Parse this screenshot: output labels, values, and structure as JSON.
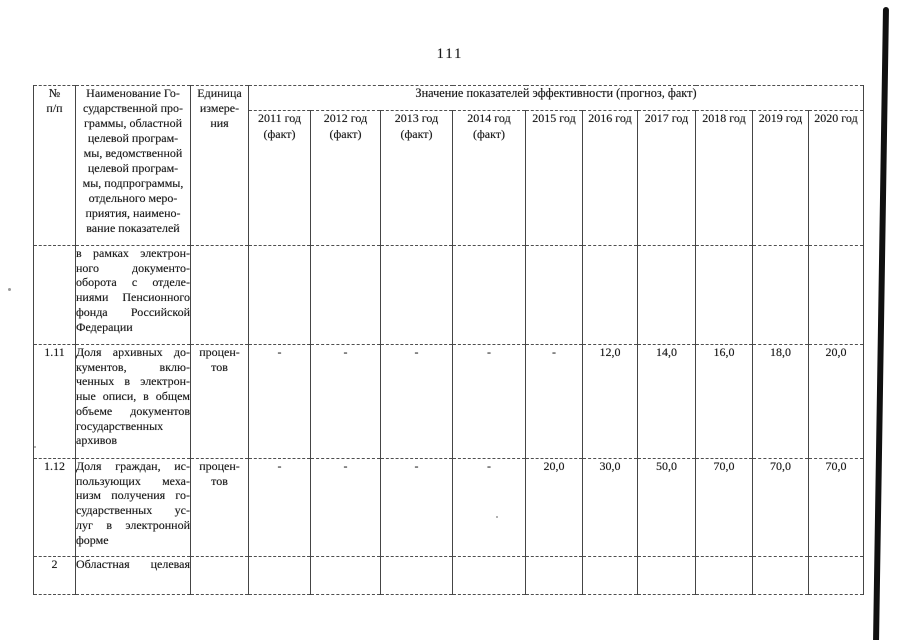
{
  "page": {
    "number": "111"
  },
  "table": {
    "header": {
      "num_lines": [
        "№",
        "п/п"
      ],
      "name_lines": [
        "Наименование Го-",
        "сударственной про-",
        "граммы, областной",
        "целевой програм-",
        "мы, ведомственной",
        "целевой програм-",
        "мы, подпрограммы,",
        "отдельного меро-",
        "приятия, наимено-",
        "вание показателей"
      ],
      "unit_lines": [
        "Единица",
        "измере-",
        "ния"
      ],
      "group_title": "Значение показателей эффективности (прогноз, факт)",
      "years": [
        [
          "2011 год",
          "(факт)"
        ],
        [
          "2012 год",
          "(факт)"
        ],
        [
          "2013 год",
          "(факт)"
        ],
        [
          "2014 год",
          "(факт)"
        ],
        [
          "2015 год"
        ],
        [
          "2016 год"
        ],
        [
          "2017 год"
        ],
        [
          "2018 год"
        ],
        [
          "2019 год"
        ],
        [
          "2020 год"
        ]
      ]
    },
    "rows": [
      {
        "num": "",
        "name_lines": [
          "в рамках электрон-",
          "ного документо-",
          "оборота с отделе-",
          "ниями Пенсионного",
          "фонда Российской",
          "Федерации"
        ],
        "unit_lines": [],
        "values": [
          "",
          "",
          "",
          "",
          "",
          "",
          "",
          "",
          "",
          ""
        ]
      },
      {
        "num": "1.11",
        "name_lines": [
          "Доля архивных до-",
          "кументов, вклю-",
          "ченных в электрон-",
          "ные описи, в общем",
          "объеме документов",
          "государственных",
          "архивов"
        ],
        "unit_lines": [
          "процен-",
          "тов"
        ],
        "values": [
          "-",
          "-",
          "-",
          "-",
          "-",
          "12,0",
          "14,0",
          "16,0",
          "18,0",
          "20,0"
        ]
      },
      {
        "num": "1.12",
        "name_lines": [
          "Доля граждан, ис-",
          "пользующих меха-",
          "низм получения го-",
          "сударственных ус-",
          "луг в электронной",
          "форме"
        ],
        "unit_lines": [
          "процен-",
          "тов"
        ],
        "values": [
          "-",
          "-",
          "-",
          "-",
          "20,0",
          "30,0",
          "50,0",
          "70,0",
          "70,0",
          "70,0"
        ]
      },
      {
        "num": "2",
        "name_lines": [
          "Областная целевая"
        ],
        "unit_lines": [],
        "values": [
          "",
          "",
          "",
          "",
          "",
          "",
          "",
          "",
          "",
          ""
        ]
      }
    ]
  }
}
